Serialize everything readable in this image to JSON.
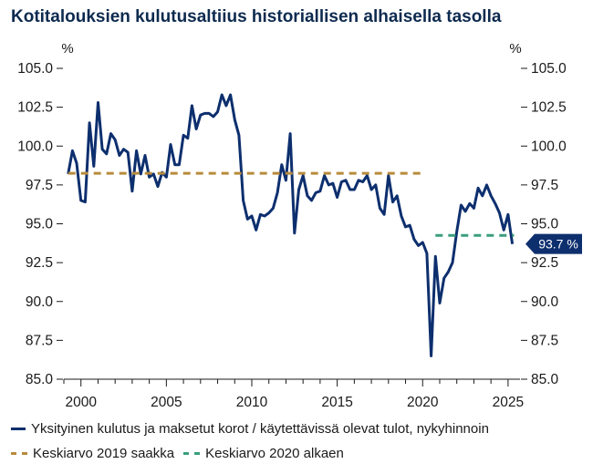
{
  "chart_data": {
    "type": "line",
    "title": "Kotitalouksien kulutusaltiius historiallisen alhaisella tasolla",
    "ylabel_left": "%",
    "ylabel_right": "%",
    "xlim": [
      1999.0,
      2025.7
    ],
    "ylim": [
      85.0,
      105.0
    ],
    "x_ticks": [
      "2000",
      "2005",
      "2010",
      "2015",
      "2020",
      "2025"
    ],
    "y_ticks": [
      "85.0",
      "87.5",
      "90.0",
      "92.5",
      "95.0",
      "97.5",
      "100.0",
      "102.5",
      "105.0"
    ],
    "grid": false,
    "legend_position": "bottom",
    "end_label": "93.7 %",
    "series": [
      {
        "name": "Yksityinen kulutus ja maksetut korot / käytettävissä olevat tulot, nykyhinnoin",
        "color": "#0d2f6e",
        "style": "solid",
        "x": [
          1999.25,
          1999.5,
          1999.75,
          2000.0,
          2000.25,
          2000.5,
          2000.75,
          2001.0,
          2001.25,
          2001.5,
          2001.75,
          2002.0,
          2002.25,
          2002.5,
          2002.75,
          2003.0,
          2003.25,
          2003.5,
          2003.75,
          2004.0,
          2004.25,
          2004.5,
          2004.75,
          2005.0,
          2005.25,
          2005.5,
          2005.75,
          2006.0,
          2006.25,
          2006.5,
          2006.75,
          2007.0,
          2007.25,
          2007.5,
          2007.75,
          2008.0,
          2008.25,
          2008.5,
          2008.75,
          2009.0,
          2009.25,
          2009.5,
          2009.75,
          2010.0,
          2010.25,
          2010.5,
          2010.75,
          2011.0,
          2011.25,
          2011.5,
          2011.75,
          2012.0,
          2012.25,
          2012.5,
          2012.75,
          2013.0,
          2013.25,
          2013.5,
          2013.75,
          2014.0,
          2014.25,
          2014.5,
          2014.75,
          2015.0,
          2015.25,
          2015.5,
          2015.75,
          2016.0,
          2016.25,
          2016.5,
          2016.75,
          2017.0,
          2017.25,
          2017.5,
          2017.75,
          2018.0,
          2018.25,
          2018.5,
          2018.75,
          2019.0,
          2019.25,
          2019.5,
          2019.75,
          2020.0,
          2020.25,
          2020.5,
          2020.75,
          2021.0,
          2021.25,
          2021.5,
          2021.75,
          2022.0,
          2022.25,
          2022.5,
          2022.75,
          2023.0,
          2023.25,
          2023.5,
          2023.75,
          2024.0,
          2024.25,
          2024.5,
          2024.75,
          2025.0,
          2025.25
        ],
        "values": [
          98.2,
          99.7,
          98.9,
          96.5,
          96.4,
          101.5,
          98.7,
          102.8,
          99.8,
          99.5,
          100.8,
          100.4,
          99.4,
          99.8,
          99.6,
          97.1,
          99.7,
          98.2,
          99.4,
          98.0,
          98.2,
          97.4,
          98.3,
          98.0,
          100.1,
          98.8,
          98.8,
          100.7,
          100.5,
          102.6,
          101.1,
          102.0,
          102.1,
          102.1,
          101.9,
          102.2,
          103.3,
          102.6,
          103.3,
          101.7,
          100.7,
          96.5,
          95.3,
          95.5,
          94.6,
          95.6,
          95.5,
          95.7,
          96.0,
          97.0,
          98.8,
          97.8,
          100.8,
          94.4,
          97.2,
          98.1,
          96.8,
          96.5,
          97.0,
          97.1,
          98.1,
          97.5,
          97.6,
          96.7,
          97.7,
          97.8,
          97.2,
          97.2,
          97.8,
          97.7,
          98.1,
          97.2,
          97.5,
          96.0,
          95.6,
          98.1,
          96.4,
          96.8,
          95.5,
          94.8,
          94.9,
          94.0,
          93.6,
          93.8,
          93.1,
          86.5,
          92.9,
          89.9,
          91.5,
          91.9,
          92.5,
          94.5,
          96.2,
          95.8,
          96.3,
          96.0,
          97.3,
          96.8,
          97.5,
          96.8,
          96.3,
          95.7,
          94.6,
          95.6,
          93.7
        ]
      },
      {
        "name": "Keskiarvo 2019 saakka",
        "color": "#b88b3c",
        "style": "dashed",
        "x": [
          1999.25,
          2020.0
        ],
        "values": [
          98.25,
          98.25
        ]
      },
      {
        "name": "Keskiarvo 2020 alkaen",
        "color": "#3a9e7e",
        "style": "dashed",
        "x": [
          2020.75,
          2025.35
        ],
        "values": [
          94.25,
          94.25
        ]
      }
    ]
  }
}
